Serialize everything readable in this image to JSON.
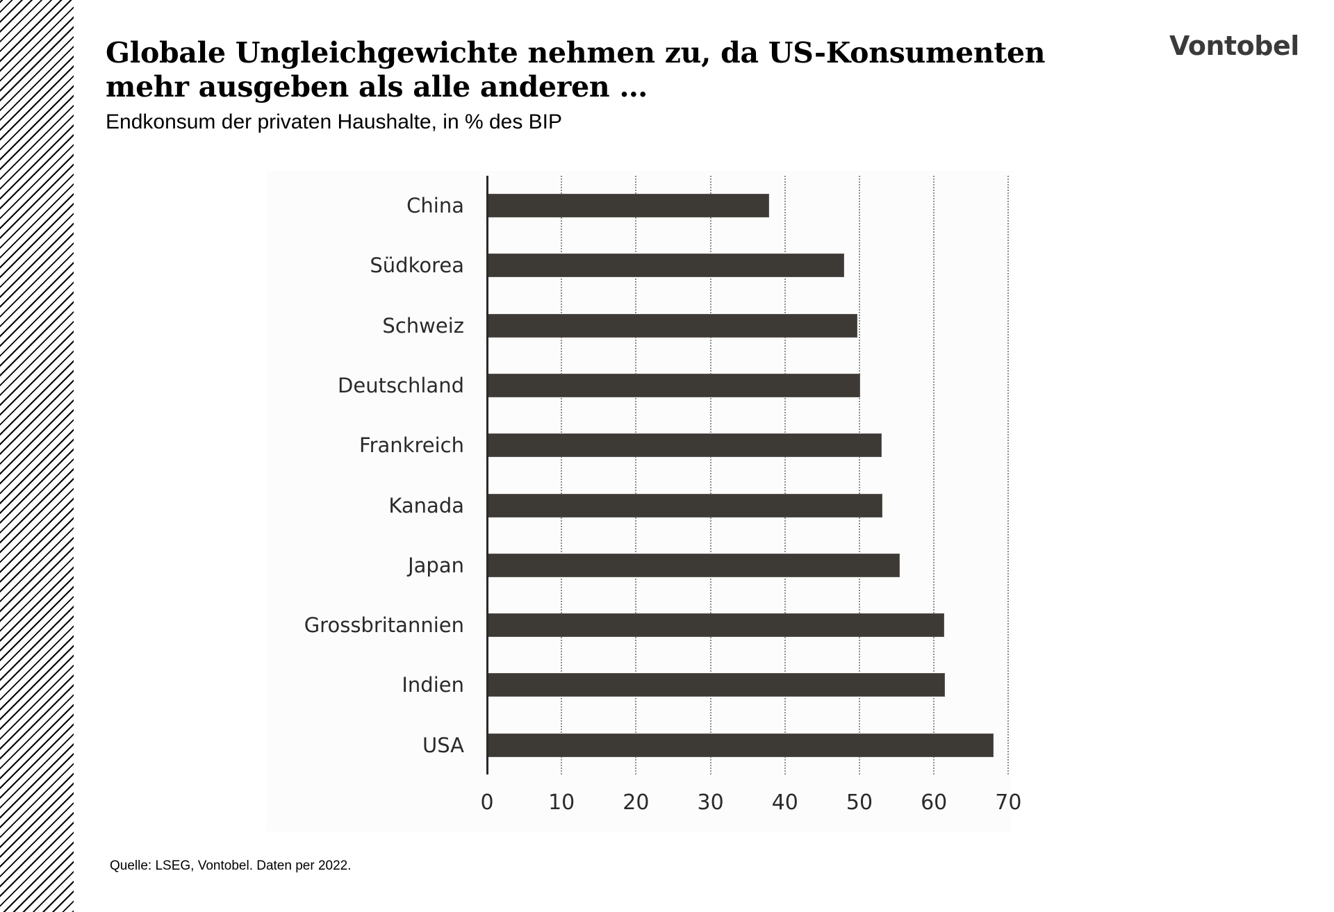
{
  "header": {
    "title": "Globale Ungleichgewichte nehmen zu, da US-Konsumenten mehr ausgeben als alle anderen …",
    "subtitle": "Endkonsum der privaten Haushalte, in % des BIP",
    "logo": "Vontobel"
  },
  "footer": {
    "source": "Quelle: LSEG, Vontobel. Daten per 2022."
  },
  "colors": {
    "bar": "#3d3935",
    "text": "#2a2a2a",
    "gridline": "#8c8c8c",
    "logo": "#3a3a3a"
  },
  "chart_data": {
    "type": "bar",
    "orientation": "horizontal",
    "title": "Globale Ungleichgewichte nehmen zu, da US-Konsumenten mehr ausgeben als alle anderen …",
    "subtitle": "Endkonsum der privaten Haushalte, in % des BIP",
    "xlabel": "",
    "ylabel": "",
    "categories": [
      "China",
      "Südkorea",
      "Schweiz",
      "Deutschland",
      "Frankreich",
      "Kanada",
      "Japan",
      "Grossbritannien",
      "Indien",
      "USA"
    ],
    "values": [
      37.8,
      47.9,
      49.6,
      50.0,
      52.9,
      53.0,
      55.3,
      61.3,
      61.4,
      67.9
    ],
    "xlim": [
      0,
      70
    ],
    "xticks": [
      "0",
      "10",
      "20",
      "30",
      "40",
      "50",
      "60",
      "70"
    ],
    "grid": "vertical dotted",
    "legend": null,
    "source": "Quelle: LSEG, Vontobel. Daten per 2022."
  }
}
